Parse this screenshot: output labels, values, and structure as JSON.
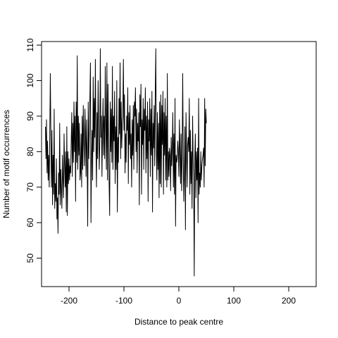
{
  "chart_data": {
    "type": "line",
    "title": "",
    "xlabel": "Distance to peak centre",
    "ylabel": "Number of motif occurrences",
    "xlim": [
      -250,
      250
    ],
    "ylim": [
      42,
      111
    ],
    "x_ticks": [
      -200,
      -100,
      0,
      100,
      200
    ],
    "y_ticks": [
      50,
      60,
      70,
      80,
      90,
      100,
      110
    ],
    "grid": false,
    "line_color": "#000000",
    "x_start": -243,
    "x_step": 1,
    "series": [
      {
        "values": [
          87,
          78,
          89,
          74,
          83,
          72,
          79,
          70,
          85,
          102,
          84,
          70,
          86,
          65,
          79,
          68,
          92,
          64,
          71,
          66,
          78,
          61,
          67,
          57,
          74,
          68,
          88,
          65,
          75,
          69,
          64,
          79,
          72,
          67,
          85,
          76,
          70,
          80,
          63,
          87,
          62,
          80,
          71,
          78,
          72,
          76,
          74,
          83,
          91,
          73,
          88,
          77,
          94,
          80,
          90,
          66,
          94,
          77,
          107,
          75,
          90,
          79,
          88,
          72,
          74,
          85,
          70,
          90,
          75,
          93,
          83,
          76,
          92,
          85,
          73,
          89,
          79,
          59,
          94,
          78,
          86,
          95,
          105,
          60,
          78,
          86,
          72,
          101,
          80,
          95,
          84,
          106,
          82,
          70,
          91,
          78,
          100,
          88,
          75,
          82,
          109,
          84,
          90,
          73,
          86,
          95,
          79,
          90,
          78,
          104,
          89,
          75,
          105,
          72,
          99,
          82,
          71,
          62,
          94,
          80,
          92,
          77,
          104,
          75,
          90,
          83,
          97,
          71,
          87,
          75,
          100,
          63,
          84,
          77,
          95,
          85,
          105,
          78,
          94,
          81,
          88,
          90,
          106,
          86,
          96,
          74,
          85,
          77,
          90,
          86,
          98,
          71,
          91,
          82,
          93,
          78,
          85,
          70,
          89,
          79,
          93,
          75,
          94,
          90,
          98,
          80,
          92,
          74,
          88,
          83,
          91,
          65,
          96,
          87,
          99,
          68,
          89,
          82,
          95,
          75,
          92,
          86,
          98,
          74,
          90,
          78,
          94,
          66,
          89,
          83,
          95,
          73,
          92,
          79,
          97,
          63,
          88,
          81,
          93,
          76,
          96,
          109,
          80,
          72,
          91,
          75,
          88,
          67,
          94,
          71,
          96,
          70,
          93,
          82,
          97,
          68,
          91,
          79,
          95,
          72,
          90,
          70,
          102,
          72,
          80,
          73,
          81,
          79,
          69,
          84,
          76,
          81,
          91,
          70,
          85,
          68,
          95,
          59,
          79,
          77,
          78,
          83,
          80,
          73,
          89,
          80,
          71,
          85,
          69,
          78,
          102,
          79,
          66,
          74,
          87,
          58,
          91,
          81,
          70,
          82,
          84,
          80,
          95,
          68,
          86,
          71,
          80,
          64,
          90,
          78,
          72,
          45,
          78,
          85,
          67,
          80,
          72,
          81,
          60,
          95,
          68,
          74,
          70,
          80,
          72,
          76,
          78,
          79,
          81,
          70,
          95,
          76,
          92,
          88
        ],
        "color": "#000000"
      }
    ]
  }
}
